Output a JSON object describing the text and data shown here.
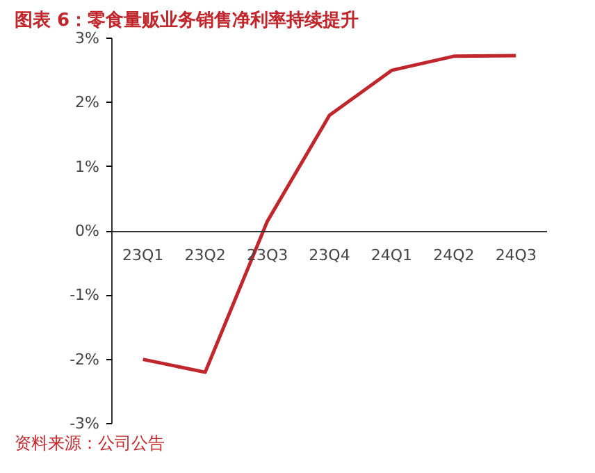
{
  "chart_data": {
    "type": "line",
    "title": "图表 6：零食量贩业务销售净利率持续提升",
    "categories": [
      "23Q1",
      "23Q2",
      "23Q3",
      "23Q4",
      "24Q1",
      "24Q2",
      "24Q3"
    ],
    "series": [
      {
        "color": "#c0272d",
        "values": [
          -2.0,
          -2.2,
          0.15,
          1.8,
          2.5,
          2.72,
          2.73
        ]
      }
    ],
    "ylim": [
      -3,
      3
    ],
    "yticks": [
      {
        "value": -3,
        "label": "-3%"
      },
      {
        "value": -2,
        "label": "-2%"
      },
      {
        "value": -1,
        "label": "-1%"
      },
      {
        "value": 0,
        "label": "0%"
      },
      {
        "value": 1,
        "label": "1%"
      },
      {
        "value": 2,
        "label": "2%"
      },
      {
        "value": 3,
        "label": "3%"
      }
    ],
    "grid": false,
    "marker": "none",
    "line_style": "solid",
    "annotations": [
      "资料来源：公司公告"
    ]
  }
}
